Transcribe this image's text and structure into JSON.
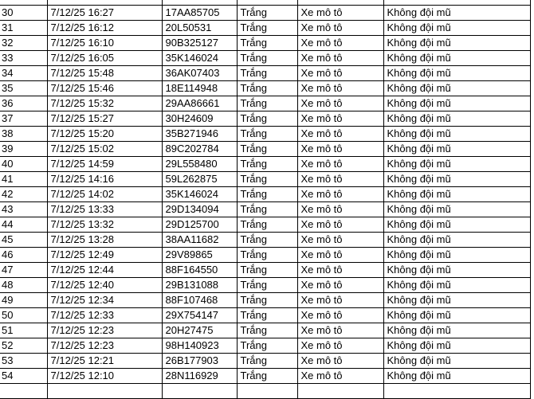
{
  "table": {
    "rows": [
      [
        "30",
        "7/12/25 16:27",
        "17AA85705",
        "Trắng",
        "Xe mô tô",
        "Không đội mũ"
      ],
      [
        "31",
        "7/12/25 16:12",
        "20L50531",
        "Trắng",
        "Xe mô tô",
        "Không đội mũ"
      ],
      [
        "32",
        "7/12/25 16:10",
        "90B325127",
        "Trắng",
        "Xe mô tô",
        "Không đội mũ"
      ],
      [
        "33",
        "7/12/25 16:05",
        "35K146024",
        "Trắng",
        "Xe mô tô",
        "Không đội mũ"
      ],
      [
        "34",
        "7/12/25 15:48",
        "36AK07403",
        "Trắng",
        "Xe mô tô",
        "Không đội mũ"
      ],
      [
        "35",
        "7/12/25 15:46",
        "18E114948",
        "Trắng",
        "Xe mô tô",
        "Không đội mũ"
      ],
      [
        "36",
        "7/12/25 15:32",
        "29AA86661",
        "Trắng",
        "Xe mô tô",
        "Không đội mũ"
      ],
      [
        "37",
        "7/12/25 15:27",
        "30H24609",
        "Trắng",
        "Xe mô tô",
        "Không đội mũ"
      ],
      [
        "38",
        "7/12/25 15:20",
        "35B271946",
        "Trắng",
        "Xe mô tô",
        "Không đội mũ"
      ],
      [
        "39",
        "7/12/25 15:02",
        "89C202784",
        "Trắng",
        "Xe mô tô",
        "Không đội mũ"
      ],
      [
        "40",
        "7/12/25 14:59",
        "29L558480",
        "Trắng",
        "Xe mô tô",
        "Không đội mũ"
      ],
      [
        "41",
        "7/12/25 14:16",
        "59L262875",
        "Trắng",
        "Xe mô tô",
        "Không đội mũ"
      ],
      [
        "42",
        "7/12/25 14:02",
        "35K146024",
        "Trắng",
        "Xe mô tô",
        "Không đội mũ"
      ],
      [
        "43",
        "7/12/25 13:33",
        "29D134094",
        "Trắng",
        "Xe mô tô",
        "Không đội mũ"
      ],
      [
        "44",
        "7/12/25 13:32",
        "29D125700",
        "Trắng",
        "Xe mô tô",
        "Không đội mũ"
      ],
      [
        "45",
        "7/12/25 13:28",
        "38AA11682",
        "Trắng",
        "Xe mô tô",
        "Không đội mũ"
      ],
      [
        "46",
        "7/12/25 12:49",
        "29V89865",
        "Trắng",
        "Xe mô tô",
        "Không đội mũ"
      ],
      [
        "47",
        "7/12/25 12:44",
        "88F164550",
        "Trắng",
        "Xe mô tô",
        "Không đội mũ"
      ],
      [
        "48",
        "7/12/25 12:40",
        "29B131088",
        "Trắng",
        "Xe mô tô",
        "Không đội mũ"
      ],
      [
        "49",
        "7/12/25 12:34",
        "88F107468",
        "Trắng",
        "Xe mô tô",
        "Không đội mũ"
      ],
      [
        "50",
        "7/12/25 12:33",
        "29X754147",
        "Trắng",
        "Xe mô tô",
        "Không đội mũ"
      ],
      [
        "51",
        "7/12/25 12:23",
        "20H27475",
        "Trắng",
        "Xe mô tô",
        "Không đội mũ"
      ],
      [
        "52",
        "7/12/25 12:23",
        "98H140923",
        "Trắng",
        "Xe mô tô",
        "Không đội mũ"
      ],
      [
        "53",
        "7/12/25 12:21",
        "26B177903",
        "Trắng",
        "Xe mô tô",
        "Không đội mũ"
      ],
      [
        "54",
        "7/12/25 12:10",
        "28N116929",
        "Trắng",
        "Xe mô tô",
        "Không đội mũ"
      ]
    ]
  }
}
